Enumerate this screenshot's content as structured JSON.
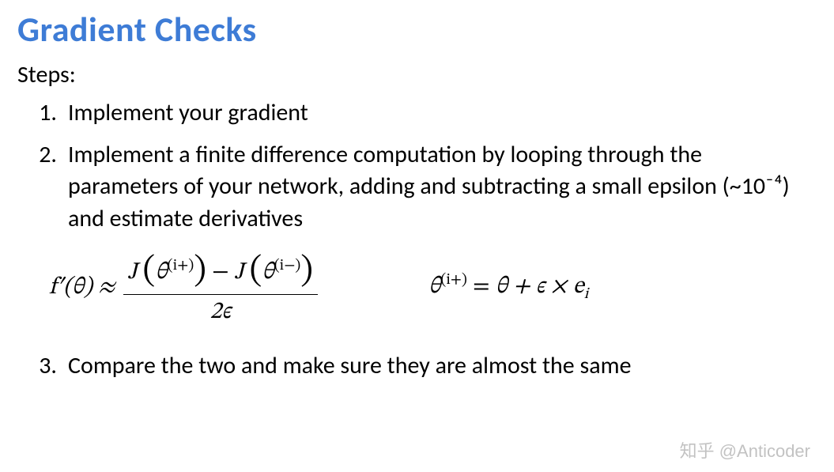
{
  "title": "Gradient Checks",
  "title_color": "#3e7cd6",
  "steps_label": "Steps:",
  "steps": [
    "Implement your gradient",
    "Implement a finite difference computation by looping through the parameters of your network, adding and subtracting a small epsilon (~10⁻⁴) and estimate derivatives",
    "Compare the two and make sure they are almost the same"
  ],
  "formula_left": {
    "lhs": "f′(θ) ≈",
    "numerator_prefix": "J ",
    "numerator_arg1_base": "θ",
    "numerator_arg1_sup": "(i+)",
    "numerator_minus": " − ",
    "numerator_arg2_base": "θ",
    "numerator_arg2_sup": "(i−)",
    "denominator": "2ϵ"
  },
  "formula_right": {
    "lhs_base": "θ",
    "lhs_sup": "(i+)",
    "eq": " = ",
    "rhs_part1": "θ + ϵ × e",
    "rhs_sub": "i"
  },
  "watermark": "知乎 @Anticoder"
}
